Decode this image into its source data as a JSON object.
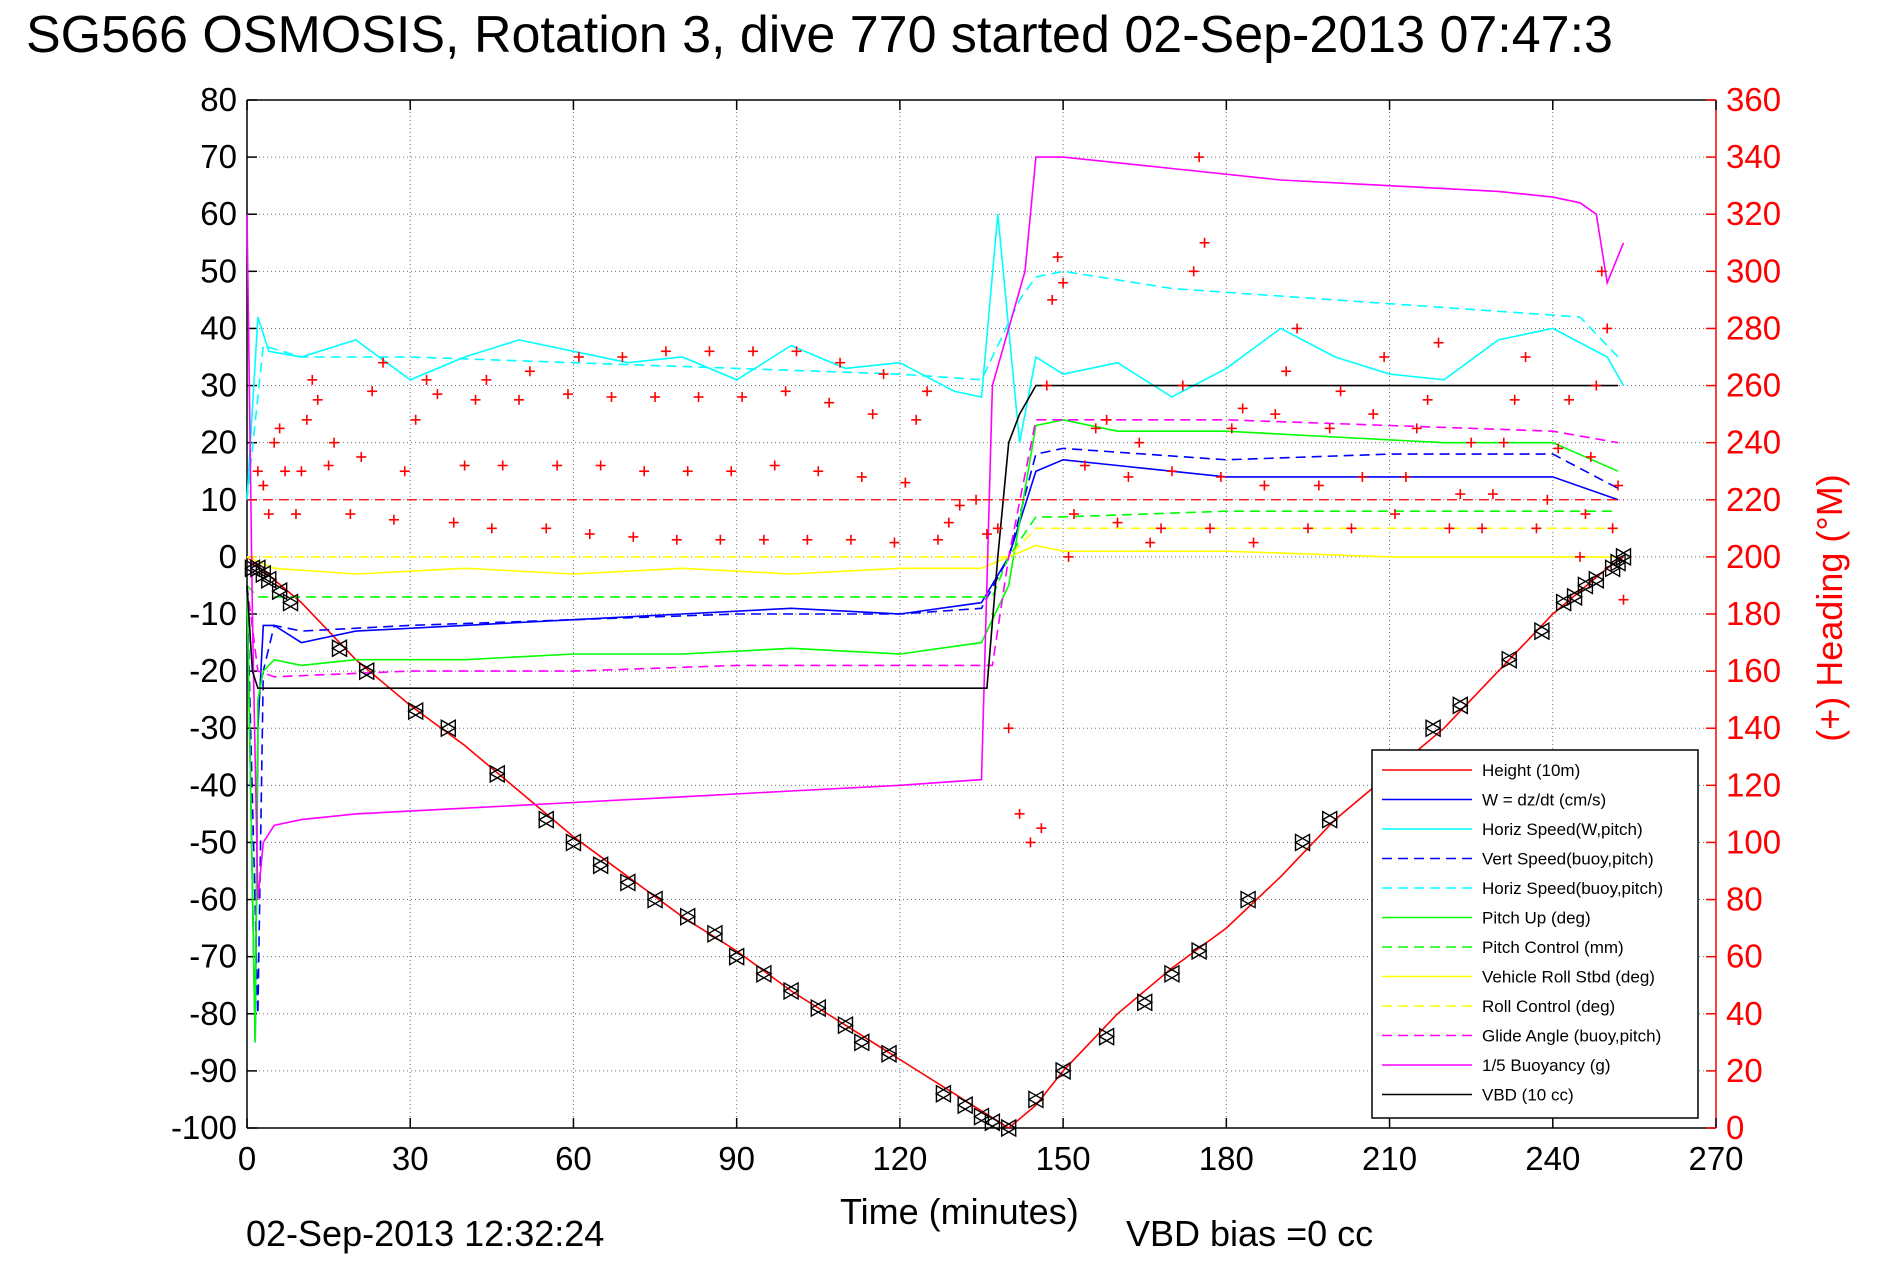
{
  "chart_data": {
    "type": "line",
    "title": "SG566 OSMOSIS, Rotation 3, dive 770 started 02-Sep-2013 07:47:3",
    "xlabel": "Time (minutes)",
    "ylabel_right": "(+) Heading (°M)",
    "footer_left": "02-Sep-2013 12:32:24",
    "footer_right": "VBD bias =0 cc",
    "xlim": [
      0,
      270
    ],
    "ylim": [
      -100,
      80
    ],
    "ylim_right": [
      0,
      360
    ],
    "x_ticks": [
      0,
      30,
      60,
      90,
      120,
      150,
      180,
      210,
      240,
      270
    ],
    "x_tick_labels": [
      "0",
      "30",
      "60",
      "90",
      "120",
      "150",
      "180",
      "210",
      "240",
      "270"
    ],
    "y_ticks": [
      80,
      70,
      60,
      50,
      40,
      30,
      20,
      10,
      0,
      -10,
      -20,
      -30,
      -40,
      -50,
      -60,
      -70,
      -80,
      -90,
      -100
    ],
    "y_tick_labels": [
      "80",
      "70",
      "60",
      "50",
      "40",
      "30",
      "20",
      "10",
      "0",
      "-10",
      "-20",
      "-30",
      "-40",
      "-50",
      "-60",
      "-70",
      "-80",
      "-90",
      "-100"
    ],
    "y_right_ticks": [
      360,
      340,
      320,
      300,
      280,
      260,
      240,
      220,
      200,
      180,
      160,
      140,
      120,
      100,
      80,
      60,
      40,
      20,
      0
    ],
    "y_right_tick_labels": [
      "360",
      "340",
      "320",
      "300",
      "280",
      "260",
      "240",
      "220",
      "200",
      "180",
      "160",
      "140",
      "120",
      "100",
      "80",
      "60",
      "40",
      "20",
      "0"
    ],
    "grid": true,
    "legend_position": "bottom-right",
    "series": [
      {
        "name": "Height (10m)",
        "color": "#ff0000",
        "dash": "solid",
        "x": [
          0,
          10,
          20,
          30,
          40,
          50,
          60,
          70,
          80,
          90,
          100,
          110,
          120,
          130,
          135,
          140,
          145,
          150,
          160,
          170,
          180,
          190,
          200,
          210,
          220,
          230,
          240,
          250,
          253
        ],
        "y": [
          0,
          -8,
          -18,
          -26,
          -33,
          -41,
          -49,
          -56,
          -63,
          -69,
          -76,
          -82,
          -88,
          -94,
          -97,
          -100,
          -96,
          -90,
          -80,
          -72,
          -65,
          -56,
          -46,
          -38,
          -30,
          -20,
          -10,
          -2,
          0
        ]
      },
      {
        "name": "W = dz/dt (cm/s)",
        "color": "#0000ff",
        "dash": "solid",
        "x": [
          0,
          1.5,
          2,
          3,
          5,
          10,
          20,
          40,
          60,
          80,
          100,
          120,
          135,
          140,
          145,
          150,
          160,
          180,
          200,
          220,
          240,
          252
        ],
        "y": [
          -5,
          -85,
          -30,
          -12,
          -12,
          -15,
          -13,
          -12,
          -11,
          -10,
          -9,
          -10,
          -8,
          0,
          15,
          17,
          16,
          14,
          14,
          14,
          14,
          10
        ]
      },
      {
        "name": "Horiz Speed(W,pitch)",
        "color": "#00ffff",
        "dash": "solid",
        "x": [
          0,
          2,
          4,
          10,
          20,
          30,
          40,
          50,
          60,
          70,
          80,
          90,
          100,
          110,
          120,
          130,
          135,
          138,
          142,
          145,
          150,
          160,
          170,
          180,
          190,
          200,
          210,
          220,
          230,
          240,
          250,
          253
        ],
        "y": [
          10,
          42,
          36,
          35,
          38,
          31,
          35,
          38,
          36,
          34,
          35,
          31,
          37,
          33,
          34,
          29,
          28,
          60,
          20,
          35,
          32,
          34,
          28,
          33,
          40,
          35,
          32,
          31,
          38,
          40,
          35,
          30
        ]
      },
      {
        "name": "Vert Speed(buoy,pitch)",
        "color": "#0000ff",
        "dash": "dash",
        "x": [
          0,
          2,
          3,
          5,
          10,
          30,
          60,
          90,
          120,
          135,
          140,
          145,
          150,
          180,
          210,
          240,
          252
        ],
        "y": [
          -5,
          -80,
          -20,
          -12,
          -13,
          -12,
          -11,
          -10,
          -10,
          -9,
          0,
          18,
          19,
          17,
          18,
          18,
          12
        ]
      },
      {
        "name": "Horiz Speed(buoy,pitch)",
        "color": "#00ffff",
        "dash": "dash",
        "x": [
          0,
          3,
          10,
          30,
          60,
          90,
          120,
          135,
          142,
          145,
          150,
          170,
          200,
          230,
          245,
          252
        ],
        "y": [
          10,
          37,
          35,
          35,
          34,
          33,
          32,
          31,
          45,
          49,
          50,
          47,
          45,
          43,
          42,
          35
        ]
      },
      {
        "name": "Pitch Up (deg)",
        "color": "#00ff00",
        "dash": "solid",
        "x": [
          0,
          1.5,
          2,
          3,
          5,
          10,
          20,
          40,
          60,
          80,
          100,
          120,
          135,
          140,
          145,
          150,
          160,
          180,
          200,
          220,
          240,
          252
        ],
        "y": [
          -5,
          -85,
          -25,
          -20,
          -18,
          -19,
          -18,
          -18,
          -17,
          -17,
          -16,
          -17,
          -15,
          -5,
          23,
          24,
          22,
          22,
          21,
          20,
          20,
          15
        ]
      },
      {
        "name": "Pitch Control (mm)",
        "color": "#00ff00",
        "dash": "dash",
        "x": [
          0,
          2,
          5,
          30,
          60,
          90,
          120,
          137,
          140,
          145,
          150,
          180,
          210,
          240,
          252
        ],
        "y": [
          -5,
          -7,
          -7,
          -7,
          -7,
          -7,
          -7,
          -7,
          0,
          7,
          7,
          8,
          8,
          8,
          8
        ]
      },
      {
        "name": "Vehicle Roll Stbd (deg)",
        "color": "#ffff00",
        "dash": "solid",
        "x": [
          0,
          5,
          20,
          40,
          60,
          80,
          100,
          120,
          135,
          140,
          145,
          150,
          180,
          210,
          240,
          252
        ],
        "y": [
          0,
          -2,
          -3,
          -2,
          -3,
          -2,
          -3,
          -2,
          -2,
          0,
          2,
          1,
          1,
          0,
          0,
          0
        ]
      },
      {
        "name": "Roll Control (deg)",
        "color": "#ffff00",
        "dash": "dash",
        "x": [
          0,
          5,
          30,
          60,
          90,
          120,
          135,
          140,
          145,
          150,
          180,
          210,
          240,
          252
        ],
        "y": [
          0,
          0,
          0,
          0,
          0,
          0,
          0,
          0,
          5,
          5,
          5,
          5,
          5,
          5
        ]
      },
      {
        "name": "Glide Angle (buoy,pitch)",
        "color": "#ff00ff",
        "dash": "dash",
        "x": [
          0,
          2,
          5,
          30,
          60,
          90,
          120,
          137,
          140,
          145,
          150,
          180,
          210,
          240,
          252
        ],
        "y": [
          -5,
          -20,
          -21,
          -20,
          -20,
          -19,
          -19,
          -19,
          0,
          24,
          24,
          24,
          23,
          22,
          20
        ]
      },
      {
        "name": "1/5 Buoyancy (g)",
        "color": "#ff00ff",
        "dash": "solid",
        "x": [
          0,
          1,
          2,
          3,
          5,
          10,
          20,
          40,
          60,
          80,
          100,
          120,
          135,
          137,
          140,
          143,
          145,
          150,
          170,
          190,
          210,
          230,
          240,
          245,
          248,
          250,
          253
        ],
        "y": [
          60,
          -10,
          -60,
          -50,
          -47,
          -46,
          -45,
          -44,
          -43,
          -42,
          -41,
          -40,
          -39,
          30,
          40,
          50,
          70,
          70,
          68,
          66,
          65,
          64,
          63,
          62,
          60,
          48,
          55
        ]
      },
      {
        "name": "VBD (10 cc)",
        "color": "#000000",
        "dash": "solid",
        "x": [
          0,
          1,
          2,
          5,
          20,
          60,
          100,
          130,
          136,
          138,
          140,
          142,
          145,
          150,
          200,
          252
        ],
        "y": [
          -5,
          -20,
          -23,
          -23,
          -23,
          -23,
          -23,
          -23,
          -23,
          0,
          20,
          25,
          30,
          30,
          30,
          30
        ]
      }
    ],
    "heading": {
      "name": "(+) Heading (°M)",
      "color": "#ff0000",
      "marker": "+",
      "reference_line": 220,
      "points": [
        [
          2,
          230
        ],
        [
          3,
          225
        ],
        [
          4,
          215
        ],
        [
          5,
          240
        ],
        [
          6,
          245
        ],
        [
          7,
          230
        ],
        [
          9,
          215
        ],
        [
          10,
          230
        ],
        [
          11,
          248
        ],
        [
          12,
          262
        ],
        [
          13,
          255
        ],
        [
          15,
          232
        ],
        [
          16,
          240
        ],
        [
          19,
          215
        ],
        [
          21,
          235
        ],
        [
          23,
          258
        ],
        [
          25,
          268
        ],
        [
          27,
          213
        ],
        [
          29,
          230
        ],
        [
          31,
          248
        ],
        [
          33,
          262
        ],
        [
          35,
          257
        ],
        [
          38,
          212
        ],
        [
          40,
          232
        ],
        [
          42,
          255
        ],
        [
          44,
          262
        ],
        [
          45,
          210
        ],
        [
          47,
          232
        ],
        [
          50,
          255
        ],
        [
          52,
          265
        ],
        [
          55,
          210
        ],
        [
          57,
          232
        ],
        [
          59,
          257
        ],
        [
          61,
          270
        ],
        [
          63,
          208
        ],
        [
          65,
          232
        ],
        [
          67,
          256
        ],
        [
          69,
          270
        ],
        [
          71,
          207
        ],
        [
          73,
          230
        ],
        [
          75,
          256
        ],
        [
          77,
          272
        ],
        [
          79,
          206
        ],
        [
          81,
          230
        ],
        [
          83,
          256
        ],
        [
          85,
          272
        ],
        [
          87,
          206
        ],
        [
          89,
          230
        ],
        [
          91,
          256
        ],
        [
          93,
          272
        ],
        [
          95,
          206
        ],
        [
          97,
          232
        ],
        [
          99,
          258
        ],
        [
          101,
          272
        ],
        [
          103,
          206
        ],
        [
          105,
          230
        ],
        [
          107,
          254
        ],
        [
          109,
          268
        ],
        [
          111,
          206
        ],
        [
          113,
          228
        ],
        [
          115,
          250
        ],
        [
          117,
          264
        ],
        [
          119,
          205
        ],
        [
          121,
          226
        ],
        [
          123,
          248
        ],
        [
          125,
          258
        ],
        [
          127,
          206
        ],
        [
          129,
          212
        ],
        [
          131,
          218
        ],
        [
          134,
          220
        ],
        [
          136,
          208
        ],
        [
          138,
          210
        ],
        [
          140,
          140
        ],
        [
          142,
          110
        ],
        [
          144,
          100
        ],
        [
          146,
          105
        ],
        [
          147,
          260
        ],
        [
          148,
          290
        ],
        [
          149,
          305
        ],
        [
          150,
          296
        ],
        [
          151,
          200
        ],
        [
          152,
          215
        ],
        [
          154,
          232
        ],
        [
          156,
          245
        ],
        [
          158,
          248
        ],
        [
          160,
          212
        ],
        [
          162,
          228
        ],
        [
          164,
          240
        ],
        [
          166,
          205
        ],
        [
          168,
          210
        ],
        [
          170,
          230
        ],
        [
          172,
          260
        ],
        [
          174,
          300
        ],
        [
          175,
          340
        ],
        [
          176,
          310
        ],
        [
          177,
          210
        ],
        [
          179,
          228
        ],
        [
          181,
          245
        ],
        [
          183,
          252
        ],
        [
          185,
          205
        ],
        [
          187,
          225
        ],
        [
          189,
          250
        ],
        [
          191,
          265
        ],
        [
          193,
          280
        ],
        [
          195,
          210
        ],
        [
          197,
          225
        ],
        [
          199,
          245
        ],
        [
          201,
          258
        ],
        [
          203,
          210
        ],
        [
          205,
          228
        ],
        [
          207,
          250
        ],
        [
          209,
          270
        ],
        [
          211,
          215
        ],
        [
          213,
          228
        ],
        [
          215,
          245
        ],
        [
          217,
          255
        ],
        [
          219,
          275
        ],
        [
          221,
          210
        ],
        [
          223,
          222
        ],
        [
          225,
          240
        ],
        [
          227,
          210
        ],
        [
          229,
          222
        ],
        [
          231,
          240
        ],
        [
          233,
          255
        ],
        [
          235,
          270
        ],
        [
          237,
          210
        ],
        [
          239,
          220
        ],
        [
          241,
          238
        ],
        [
          243,
          255
        ],
        [
          245,
          200
        ],
        [
          246,
          215
        ],
        [
          247,
          235
        ],
        [
          248,
          260
        ],
        [
          249,
          300
        ],
        [
          250,
          280
        ],
        [
          251,
          210
        ],
        [
          252,
          225
        ],
        [
          253,
          185
        ]
      ]
    },
    "depth_markers": {
      "marker": "triangle",
      "color": "#000000",
      "x": [
        1,
        2,
        3,
        4,
        6,
        8,
        17,
        22,
        31,
        37,
        46,
        55,
        60,
        65,
        70,
        75,
        81,
        86,
        90,
        95,
        100,
        105,
        110,
        113,
        118,
        128,
        132,
        135,
        137,
        140,
        145,
        150,
        158,
        165,
        170,
        175,
        184,
        194,
        199,
        218,
        223,
        232,
        238,
        242,
        244,
        246,
        248,
        251,
        252,
        253
      ],
      "y": [
        -2,
        -2,
        -3,
        -4,
        -6,
        -8,
        -16,
        -20,
        -27,
        -30,
        -38,
        -46,
        -50,
        -54,
        -57,
        -60,
        -63,
        -66,
        -70,
        -73,
        -76,
        -79,
        -82,
        -85,
        -87,
        -94,
        -96,
        -98,
        -99,
        -100,
        -95,
        -90,
        -84,
        -78,
        -73,
        -69,
        -60,
        -50,
        -46,
        -30,
        -26,
        -18,
        -13,
        -8,
        -7,
        -5,
        -4,
        -2,
        -1,
        0
      ]
    }
  }
}
